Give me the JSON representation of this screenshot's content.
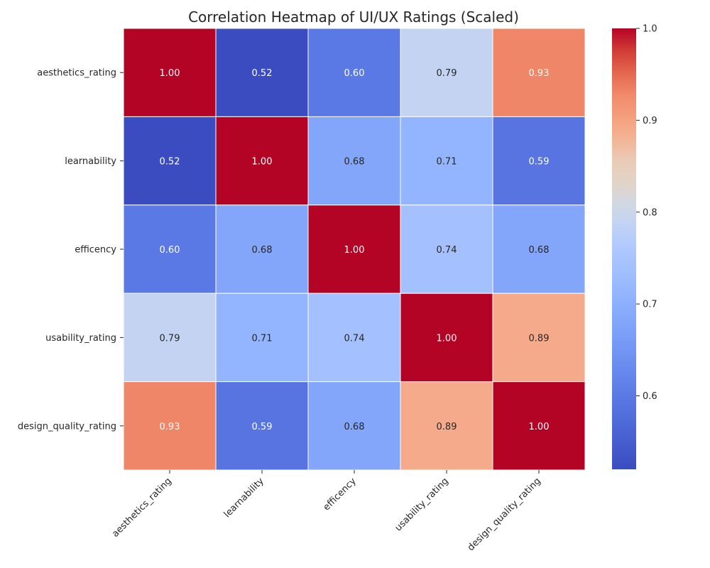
{
  "chart_data": {
    "type": "heatmap",
    "title": "Correlation Heatmap of UI/UX Ratings (Scaled)",
    "x_labels": [
      "aesthetics_rating",
      "learnability",
      "efficency",
      "usability_rating",
      "design_quality_rating"
    ],
    "y_labels": [
      "aesthetics_rating",
      "learnability",
      "efficency",
      "usability_rating",
      "design_quality_rating"
    ],
    "values": [
      [
        1.0,
        0.52,
        0.6,
        0.79,
        0.93
      ],
      [
        0.52,
        1.0,
        0.68,
        0.71,
        0.59
      ],
      [
        0.6,
        0.68,
        1.0,
        0.74,
        0.68
      ],
      [
        0.79,
        0.71,
        0.74,
        1.0,
        0.89
      ],
      [
        0.93,
        0.59,
        0.68,
        0.89,
        1.0
      ]
    ],
    "value_format": "2 decimals",
    "colormap": "coolwarm",
    "vmin": 0.52,
    "vmax": 1.0,
    "colorbar_ticks": [
      "0.6",
      "0.7",
      "0.8",
      "0.9",
      "1.0"
    ],
    "colorbar_tick_values": [
      0.6,
      0.7,
      0.8,
      0.9,
      1.0
    ],
    "colors": {
      "low": "#3b4cc0",
      "mid": "#dddcdc",
      "high": "#b40426",
      "light_text": "#ffffff",
      "dark_text": "#262626",
      "grid_line": "#ffffff"
    }
  }
}
